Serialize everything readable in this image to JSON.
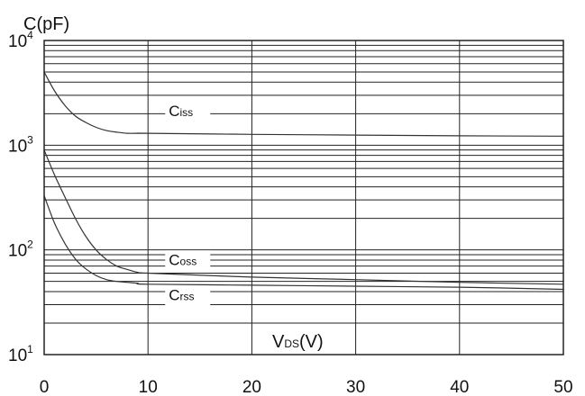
{
  "chart_data": {
    "type": "line",
    "ylabel": "C(pF)",
    "xlabel_main": "V",
    "xlabel_sub": "DS",
    "xlabel_unit": "(V)",
    "x_scale": "linear",
    "y_scale": "log",
    "xlim": [
      0,
      50
    ],
    "ylim": [
      10,
      10000
    ],
    "x_ticks": [
      0,
      10,
      20,
      30,
      40,
      50
    ],
    "y_ticks": [
      {
        "base": "10",
        "exp": "1",
        "value": 10
      },
      {
        "base": "10",
        "exp": "2",
        "value": 100
      },
      {
        "base": "10",
        "exp": "3",
        "value": 1000
      },
      {
        "base": "10",
        "exp": "4",
        "value": 10000
      }
    ],
    "grid": true,
    "series": [
      {
        "name": "Ciss",
        "label_main": "C",
        "label_sub": "iss",
        "label_at": [
          12,
          1900
        ],
        "x": [
          0,
          1,
          2,
          3,
          4,
          5,
          6,
          7,
          8,
          9,
          10,
          20,
          30,
          40,
          50
        ],
        "y": [
          5000,
          3300,
          2400,
          1900,
          1650,
          1480,
          1380,
          1330,
          1300,
          1300,
          1300,
          1270,
          1250,
          1230,
          1220
        ]
      },
      {
        "name": "Coss",
        "label_main": "C",
        "label_sub": "oss",
        "label_at": [
          12,
          72
        ],
        "x": [
          0,
          1,
          2,
          3,
          4,
          5,
          6,
          7,
          8,
          9,
          10,
          20,
          30,
          40,
          50
        ],
        "y": [
          900,
          520,
          320,
          200,
          135,
          100,
          81,
          70,
          65,
          61,
          60,
          55,
          52,
          49,
          47
        ]
      },
      {
        "name": "Crss",
        "label_main": "C",
        "label_sub": "rss",
        "label_at": [
          12,
          33
        ],
        "x": [
          0,
          1,
          2,
          3,
          4,
          5,
          6,
          7,
          8,
          9,
          10,
          20,
          30,
          40,
          50
        ],
        "y": [
          330,
          180,
          115,
          82,
          66,
          57,
          52,
          50,
          49,
          48,
          47,
          46,
          45,
          44,
          42
        ]
      }
    ]
  }
}
